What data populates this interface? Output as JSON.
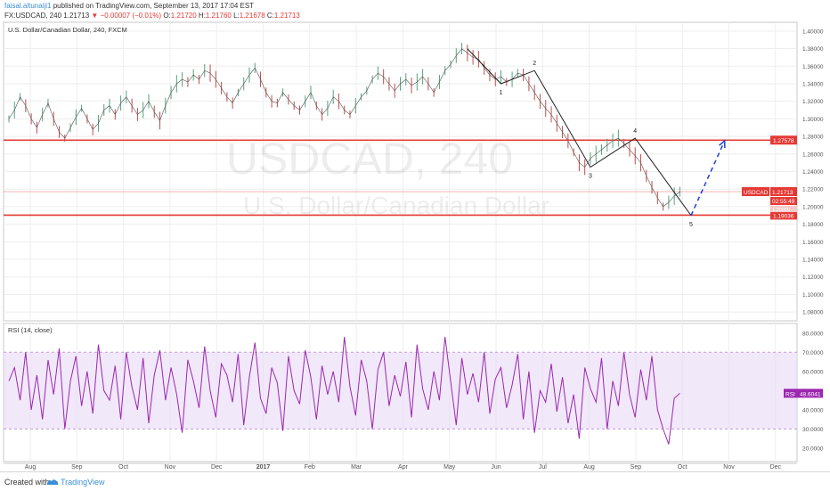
{
  "header": {
    "author": "faisal.altunaiji1",
    "published_text": "published on TradingView.com, September 13, 2017 17:04 EST",
    "symbol": "FX:USDCAD, 240",
    "last": "1.21713",
    "change": "−0.00007 (−0.01%)",
    "o_label": "O:",
    "o_val": "1.21720",
    "h_label": "H:",
    "h_val": "1.21760",
    "l_label": "L:",
    "l_val": "1.21678",
    "c_label": "C:",
    "c_val": "1.21713"
  },
  "footer": {
    "created_with": "Created with",
    "brand": "TradingView"
  },
  "chart_data": [
    {
      "type": "line",
      "title": "U.S. Dollar/Canadian Dollar, 240, FXCM",
      "watermark_symbol": "USDCAD, 240",
      "watermark_name": "U.S. Dollar/Canadian Dollar",
      "x_ticks": [
        "Aug",
        "Sep",
        "Oct",
        "Nov",
        "Dec",
        "2017",
        "Feb",
        "Mar",
        "Apr",
        "May",
        "Jun",
        "Jul",
        "Aug",
        "Sep",
        "Oct",
        "Nov",
        "Dec"
      ],
      "ylim": [
        1.07,
        1.41
      ],
      "y_ticks": [
        "1.40000",
        "1.38000",
        "1.36000",
        "1.34000",
        "1.32000",
        "1.30000",
        "1.28000",
        "1.26000",
        "1.24000",
        "1.22000",
        "1.20000",
        "1.18000",
        "1.16000",
        "1.14000",
        "1.12000",
        "1.10000",
        "1.08000"
      ],
      "series": [
        {
          "values": [
            1.3,
            1.31,
            1.325,
            1.315,
            1.3,
            1.29,
            1.305,
            1.318,
            1.3,
            1.285,
            1.278,
            1.29,
            1.302,
            1.312,
            1.3,
            1.288,
            1.295,
            1.31,
            1.315,
            1.305,
            1.318,
            1.325,
            1.315,
            1.305,
            1.31,
            1.32,
            1.308,
            1.298,
            1.315,
            1.33,
            1.34,
            1.345,
            1.342,
            1.35,
            1.345,
            1.355,
            1.352,
            1.345,
            1.335,
            1.325,
            1.318,
            1.33,
            1.34,
            1.35,
            1.358,
            1.345,
            1.33,
            1.32,
            1.318,
            1.33,
            1.322,
            1.315,
            1.31,
            1.32,
            1.33,
            1.315,
            1.305,
            1.312,
            1.325,
            1.32,
            1.31,
            1.305,
            1.315,
            1.325,
            1.332,
            1.345,
            1.352,
            1.348,
            1.34,
            1.332,
            1.34,
            1.345,
            1.338,
            1.342,
            1.348,
            1.34,
            1.33,
            1.342,
            1.355,
            1.362,
            1.372,
            1.38,
            1.375,
            1.37,
            1.368,
            1.358,
            1.35,
            1.345,
            1.348,
            1.342,
            1.345,
            1.352,
            1.35,
            1.34,
            1.33,
            1.32,
            1.312,
            1.305,
            1.295,
            1.285,
            1.275,
            1.262,
            1.25,
            1.245,
            1.255,
            1.26,
            1.265,
            1.27,
            1.275,
            1.278,
            1.272,
            1.265,
            1.258,
            1.25,
            1.235,
            1.222,
            1.21,
            1.2,
            1.205,
            1.212,
            1.217
          ]
        }
      ],
      "horizontal_levels": [
        {
          "value": 1.27578,
          "label": "1.27578",
          "color": "#e53935"
        },
        {
          "value": 1.19036,
          "label": "1.19036",
          "color": "#e53935"
        }
      ],
      "price_marker": {
        "symbol": "USDCAD",
        "value": 1.21713,
        "label": "1.21713",
        "timer": "02:55:49",
        "color": "#e53935"
      },
      "hidden_level_label": "1.20000",
      "wave_labels": [
        "1",
        "2",
        "3",
        "4",
        "5"
      ],
      "wave_points": [
        {
          "label": "",
          "x_index": 82,
          "y": 1.38
        },
        {
          "label": "1",
          "x_index": 88,
          "y": 1.34
        },
        {
          "label": "2",
          "x_index": 94,
          "y": 1.355
        },
        {
          "label": "3",
          "x_index": 104,
          "y": 1.245
        },
        {
          "label": "4",
          "x_index": 112,
          "y": 1.278
        },
        {
          "label": "5",
          "x_index": 122,
          "y": 1.19
        }
      ],
      "projection": {
        "from_x_index": 122,
        "from_y": 1.19,
        "to_x_index": 128,
        "to_y": 1.275,
        "color": "#1a3fd6"
      },
      "x_slots": 140
    },
    {
      "type": "line",
      "title": "RSI (14, close)",
      "ylim": [
        13,
        85
      ],
      "y_ticks": [
        "80.0000",
        "70.0000",
        "60.0000",
        "50.0000",
        "40.0000",
        "30.0000",
        "20.0000"
      ],
      "band": [
        30,
        70
      ],
      "band_color": "#e8d9f7",
      "series": [
        {
          "name": "RSI",
          "color": "#9c27b0",
          "values": [
            55,
            62,
            45,
            70,
            40,
            58,
            35,
            66,
            48,
            72,
            30,
            55,
            68,
            42,
            60,
            38,
            74,
            50,
            45,
            63,
            35,
            70,
            52,
            40,
            67,
            33,
            58,
            71,
            45,
            62,
            48,
            28,
            66,
            55,
            41,
            73,
            50,
            36,
            64,
            58,
            44,
            69,
            32,
            57,
            75,
            46,
            38,
            62,
            54,
            29,
            68,
            50,
            43,
            71,
            57,
            35,
            63,
            48,
            60,
            44,
            78,
            52,
            37,
            66,
            55,
            30,
            61,
            70,
            42,
            58,
            47,
            65,
            36,
            74,
            51,
            40,
            60,
            45,
            78,
            55,
            32,
            67,
            48,
            59,
            44,
            70,
            38,
            56,
            62,
            41,
            53,
            69,
            35,
            60,
            28,
            50,
            44,
            64,
            39,
            57,
            33,
            48,
            25,
            62,
            51,
            44,
            67,
            30,
            55,
            42,
            70,
            48,
            36,
            61,
            45,
            68,
            40,
            30,
            22,
            46,
            48.6
          ]
        }
      ],
      "last_label": "RSI",
      "last_value": "48.6041"
    }
  ]
}
